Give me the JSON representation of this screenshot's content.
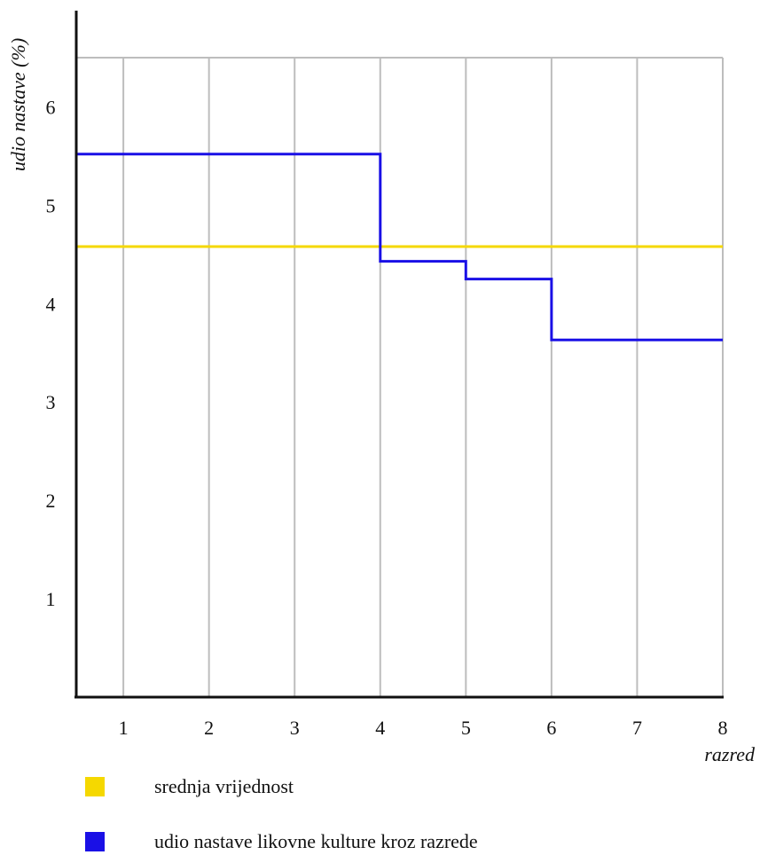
{
  "chart_data": {
    "type": "line",
    "title": "",
    "xlabel": "razred",
    "ylabel": "udio nastave (%)",
    "x_ticks": [
      1,
      2,
      3,
      4,
      5,
      6,
      7,
      8
    ],
    "y_ticks": [
      1,
      2,
      3,
      4,
      5,
      6
    ],
    "xlim": [
      0.45,
      8
    ],
    "ylim": [
      0,
      6.5
    ],
    "grid": {
      "vertical": true,
      "horizontal": false
    },
    "legend_position": "bottom-left",
    "series": [
      {
        "name": "udio nastave likovne kulture kroz razrede",
        "color": "#1a10e6",
        "step": true,
        "points": [
          {
            "x": 0.45,
            "y": 5.52
          },
          {
            "x": 4,
            "y": 5.52
          },
          {
            "x": 4,
            "y": 4.43
          },
          {
            "x": 5,
            "y": 4.43
          },
          {
            "x": 5,
            "y": 4.25
          },
          {
            "x": 6,
            "y": 4.25
          },
          {
            "x": 6,
            "y": 3.63
          },
          {
            "x": 8,
            "y": 3.63
          }
        ]
      },
      {
        "name": "srednja vrijednost",
        "color": "#f5d800",
        "step": false,
        "points": [
          {
            "x": 0.45,
            "y": 4.58
          },
          {
            "x": 8,
            "y": 4.58
          }
        ]
      }
    ]
  }
}
